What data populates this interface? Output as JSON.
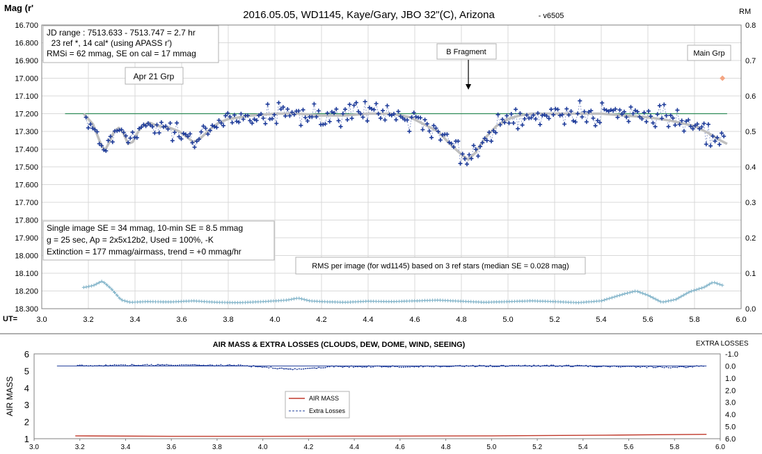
{
  "chart_data": [
    {
      "type": "scatter",
      "title": "2016.05.05,  WD1145, Kaye/Gary, JBO 32\"(C), Arizona",
      "title_suffix": "- v6505",
      "ylabel": "Mag (r'",
      "y2label": "RM",
      "xlabel": "UT=",
      "xlim": [
        3.0,
        6.0
      ],
      "ylim": [
        16.7,
        18.3
      ],
      "y_inverted": true,
      "y2lim": [
        0.0,
        0.8
      ],
      "x_ticks": [
        "3.0",
        "3.2",
        "3.4",
        "3.6",
        "3.8",
        "4.0",
        "4.2",
        "4.4",
        "4.6",
        "4.8",
        "5.0",
        "5.2",
        "5.4",
        "5.6",
        "5.8",
        "6.0"
      ],
      "y_ticks": [
        "16.700",
        "16.800",
        "16.900",
        "17.000",
        "17.100",
        "17.200",
        "17.300",
        "17.400",
        "17.500",
        "17.600",
        "17.700",
        "17.800",
        "17.900",
        "18.000",
        "18.100",
        "18.200",
        "18.300"
      ],
      "y2_ticks": [
        "0.8",
        "0.7",
        "0.6",
        "0.5",
        "0.4",
        "0.3",
        "0.2",
        "0.1",
        "0.0"
      ],
      "grid": true,
      "info_box_1": [
        "JD range  : 7513.633 - 7513.747  = 2.7 hr",
        "  23 ref *, 14 cal* (using APASS r')",
        "RMSi = 62 mmag, SE on cal = 17 mmag"
      ],
      "info_box_2": [
        "Single image SE = 34 mmag, 10-min SE = 8.5 mmag",
        "g = 25 sec, Ap = 2x5x12b2, Used = 100%, -K",
        "Extinction = 177 mmag/airmass, trend = +0 mmag/hr"
      ],
      "annotations": {
        "apr21": "Apr 21 Grp",
        "bfrag": "B Fragment",
        "maingrp": "Main Grp",
        "rms_note": "RMS per image (for wd1145) based on 3 ref stars (median SE = 0.028 mag)"
      },
      "reference_level": 17.2,
      "main_grp_marker": {
        "x": 5.92,
        "y": 17.0
      },
      "b_fragment_arrow_x": 4.83,
      "trend": [
        [
          3.18,
          17.2
        ],
        [
          3.22,
          17.26
        ],
        [
          3.25,
          17.36
        ],
        [
          3.27,
          17.41
        ],
        [
          3.29,
          17.36
        ],
        [
          3.31,
          17.3
        ],
        [
          3.33,
          17.28
        ],
        [
          3.35,
          17.31
        ],
        [
          3.37,
          17.37
        ],
        [
          3.39,
          17.36
        ],
        [
          3.41,
          17.31
        ],
        [
          3.43,
          17.27
        ],
        [
          3.46,
          17.25
        ],
        [
          3.5,
          17.27
        ],
        [
          3.55,
          17.28
        ],
        [
          3.59,
          17.3
        ],
        [
          3.62,
          17.33
        ],
        [
          3.65,
          17.36
        ],
        [
          3.68,
          17.34
        ],
        [
          3.72,
          17.29
        ],
        [
          3.76,
          17.25
        ],
        [
          3.8,
          17.23
        ],
        [
          3.85,
          17.22
        ],
        [
          3.9,
          17.21
        ],
        [
          4.0,
          17.2
        ],
        [
          4.1,
          17.2
        ],
        [
          4.2,
          17.21
        ],
        [
          4.3,
          17.21
        ],
        [
          4.4,
          17.2
        ],
        [
          4.5,
          17.2
        ],
        [
          4.58,
          17.22
        ],
        [
          4.64,
          17.26
        ],
        [
          4.7,
          17.3
        ],
        [
          4.75,
          17.37
        ],
        [
          4.8,
          17.43
        ],
        [
          4.83,
          17.46
        ],
        [
          4.86,
          17.42
        ],
        [
          4.9,
          17.34
        ],
        [
          4.95,
          17.27
        ],
        [
          5.0,
          17.23
        ],
        [
          5.05,
          17.21
        ],
        [
          5.1,
          17.2
        ],
        [
          5.2,
          17.2
        ],
        [
          5.3,
          17.2
        ],
        [
          5.4,
          17.2
        ],
        [
          5.5,
          17.21
        ],
        [
          5.6,
          17.22
        ],
        [
          5.7,
          17.24
        ],
        [
          5.8,
          17.27
        ],
        [
          5.86,
          17.31
        ],
        [
          5.91,
          17.35
        ],
        [
          5.94,
          17.37
        ]
      ],
      "rms_series": [
        [
          3.18,
          0.06
        ],
        [
          3.22,
          0.065
        ],
        [
          3.26,
          0.078
        ],
        [
          3.3,
          0.055
        ],
        [
          3.34,
          0.025
        ],
        [
          3.38,
          0.018
        ],
        [
          3.45,
          0.02
        ],
        [
          3.55,
          0.019
        ],
        [
          3.65,
          0.022
        ],
        [
          3.75,
          0.018
        ],
        [
          3.85,
          0.017
        ],
        [
          3.95,
          0.02
        ],
        [
          4.05,
          0.024
        ],
        [
          4.1,
          0.03
        ],
        [
          4.15,
          0.022
        ],
        [
          4.2,
          0.02
        ],
        [
          4.3,
          0.018
        ],
        [
          4.4,
          0.021
        ],
        [
          4.5,
          0.02
        ],
        [
          4.6,
          0.022
        ],
        [
          4.7,
          0.024
        ],
        [
          4.8,
          0.021
        ],
        [
          4.9,
          0.018
        ],
        [
          5.0,
          0.02
        ],
        [
          5.1,
          0.022
        ],
        [
          5.2,
          0.02
        ],
        [
          5.3,
          0.017
        ],
        [
          5.4,
          0.022
        ],
        [
          5.5,
          0.042
        ],
        [
          5.55,
          0.05
        ],
        [
          5.6,
          0.038
        ],
        [
          5.66,
          0.018
        ],
        [
          5.72,
          0.026
        ],
        [
          5.78,
          0.048
        ],
        [
          5.84,
          0.06
        ],
        [
          5.88,
          0.075
        ],
        [
          5.92,
          0.066
        ]
      ]
    },
    {
      "type": "line",
      "title": "AIR MASS & EXTRA LOSSES (CLOUDS, DEW, DOME, WIND, SEEING)",
      "ylabel": "AIR MASS",
      "y2label": "EXTRA LOSSES",
      "xlim": [
        3.0,
        6.0
      ],
      "ylim": [
        1,
        6
      ],
      "y2lim": [
        -1.0,
        6.0
      ],
      "y2_inverted": true,
      "x_ticks": [
        "3.0",
        "3.2",
        "3.4",
        "3.6",
        "3.8",
        "4.0",
        "4.2",
        "4.4",
        "4.6",
        "4.8",
        "5.0",
        "5.2",
        "5.4",
        "5.6",
        "5.8",
        "6.0"
      ],
      "y_ticks": [
        "6",
        "5",
        "4",
        "3",
        "2",
        "1"
      ],
      "y2_ticks": [
        "-1.0",
        "0.0",
        "1.0",
        "2.0",
        "3.0",
        "4.0",
        "5.0",
        "6.0"
      ],
      "grid": false,
      "legend": [
        "AIR MASS",
        "Extra Losses"
      ],
      "series": [
        {
          "name": "AIR MASS",
          "color": "#c0392b",
          "values": [
            [
              3.18,
              1.17
            ],
            [
              3.6,
              1.14
            ],
            [
              4.0,
              1.14
            ],
            [
              4.5,
              1.15
            ],
            [
              5.0,
              1.17
            ],
            [
              5.5,
              1.21
            ],
            [
              5.94,
              1.26
            ]
          ]
        },
        {
          "name": "Extra Losses",
          "color": "#1f3c9a",
          "values": [
            [
              3.1,
              0.0
            ],
            [
              3.3,
              -0.05
            ],
            [
              3.6,
              -0.08
            ],
            [
              3.9,
              -0.05
            ],
            [
              4.05,
              0.15
            ],
            [
              4.12,
              0.3
            ],
            [
              4.2,
              0.2
            ],
            [
              4.3,
              0.05
            ],
            [
              4.6,
              0.05
            ],
            [
              5.0,
              0.0
            ],
            [
              5.3,
              -0.02
            ],
            [
              5.6,
              0.05
            ],
            [
              5.8,
              0.1
            ],
            [
              5.94,
              0.02
            ]
          ]
        },
        {
          "name": "reference",
          "color": "#1f3c9a",
          "values": [
            [
              3.1,
              0.0
            ],
            [
              5.94,
              0.0
            ]
          ]
        }
      ]
    }
  ],
  "colors": {
    "points": "#1f3c9a",
    "trend": "#bfbfbf",
    "reference": "#2e8b57",
    "rms": "#7fb2c8",
    "main_grp_marker": "#f4a582",
    "airmass": "#c0392b"
  }
}
